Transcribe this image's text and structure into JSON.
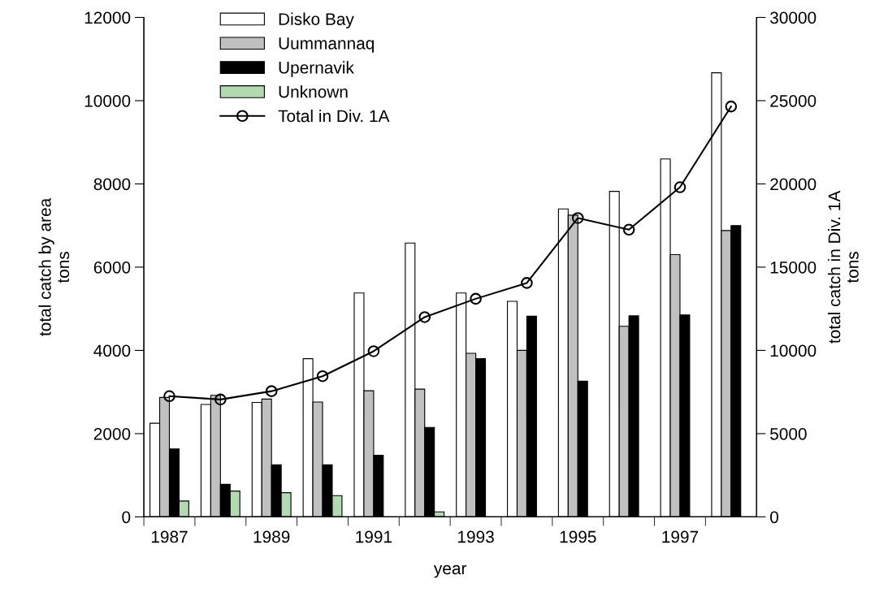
{
  "chart_data": {
    "type": "bar",
    "categories": [
      "1987",
      null,
      "1989",
      null,
      "1991",
      null,
      "1993",
      null,
      "1995",
      null,
      "1997",
      null
    ],
    "series": [
      {
        "name": "Disko Bay",
        "color": "#ffffff",
        "values": [
          2250,
          2700,
          2750,
          3800,
          5380,
          6580,
          5380,
          5180,
          7400,
          7820,
          8600,
          10670
        ]
      },
      {
        "name": "Uummannaq",
        "color": "#c0c0c0",
        "values": [
          2870,
          2920,
          2830,
          2760,
          3030,
          3070,
          3930,
          4000,
          7250,
          4580,
          6300,
          6880
        ]
      },
      {
        "name": "Upernavik",
        "color": "#000000",
        "values": [
          1630,
          780,
          1250,
          1250,
          1480,
          2150,
          3800,
          4820,
          3260,
          4830,
          4850,
          7000
        ]
      },
      {
        "name": "Unknown",
        "color": "#b3d9b3",
        "values": [
          380,
          620,
          580,
          510,
          null,
          120,
          null,
          null,
          null,
          null,
          null,
          null
        ]
      },
      {
        "name": "Total in Div. 1A",
        "type": "line",
        "axis": "y2",
        "color": "#000000",
        "marker": "circle",
        "values": [
          7250,
          7050,
          7550,
          8450,
          9950,
          12000,
          13100,
          14050,
          17950,
          17250,
          19800,
          24650
        ]
      }
    ],
    "xlabel": "year",
    "ylabel": "total catch by area\ntons",
    "y2label": "total catch in Div. 1A\ntons",
    "ylim": [
      0,
      12000
    ],
    "yticks": [
      0,
      2000,
      4000,
      6000,
      8000,
      10000,
      12000
    ],
    "y2lim": [
      0,
      30000
    ],
    "y2ticks": [
      0,
      5000,
      10000,
      15000,
      20000,
      25000,
      30000
    ],
    "grid": false,
    "legend": "top left"
  }
}
